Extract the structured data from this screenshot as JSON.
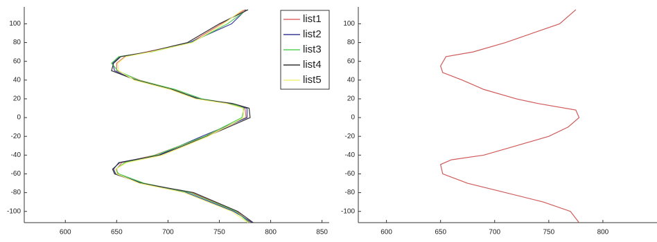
{
  "charts": [
    {
      "type": "line",
      "xlim": [
        560,
        857
      ],
      "ylim": [
        -112,
        118
      ],
      "xticks": [
        600,
        650,
        700,
        750,
        800,
        850
      ],
      "yticks": [
        -100,
        -80,
        -60,
        -40,
        -20,
        0,
        20,
        40,
        60,
        80,
        100
      ],
      "legend": "top-right",
      "series": [
        {
          "name": "list1",
          "color": "#e06a6a",
          "y": [
            -112,
            -100,
            -80,
            -70,
            -60,
            -55,
            -48,
            -40,
            -20,
            0,
            10,
            15,
            20,
            30,
            40,
            50,
            58,
            65,
            70,
            80,
            100,
            115
          ],
          "x": [
            780,
            767,
            723,
            673,
            651,
            650,
            655,
            687,
            737,
            776,
            775,
            762,
            728,
            706,
            672,
            650,
            650,
            658,
            679,
            722,
            752,
            775
          ]
        },
        {
          "name": "list2",
          "color": "#3a3a9a",
          "y": [
            -112,
            -100,
            -80,
            -70,
            -60,
            -55,
            -48,
            -40,
            -20,
            0,
            10,
            15,
            20,
            30,
            40,
            50,
            58,
            65,
            70,
            80,
            100,
            115
          ],
          "x": [
            782,
            764,
            718,
            676,
            649,
            647,
            652,
            691,
            733,
            777,
            777,
            758,
            731,
            703,
            668,
            648,
            646,
            653,
            682,
            721,
            762,
            776
          ]
        },
        {
          "name": "list3",
          "color": "#55d055",
          "y": [
            -112,
            -100,
            -80,
            -70,
            -60,
            -55,
            -48,
            -40,
            -20,
            0,
            10,
            15,
            20,
            30,
            40,
            50,
            58,
            65,
            70,
            80,
            100,
            115
          ],
          "x": [
            779,
            766,
            721,
            677,
            652,
            649,
            658,
            688,
            736,
            772,
            774,
            761,
            733,
            707,
            671,
            651,
            645,
            652,
            684,
            723,
            758,
            777
          ]
        },
        {
          "name": "list4",
          "color": "#333333",
          "y": [
            -112,
            -100,
            -80,
            -70,
            -60,
            -55,
            -48,
            -40,
            -20,
            0,
            10,
            15,
            20,
            30,
            40,
            50,
            58,
            65,
            70,
            80,
            100,
            115
          ],
          "x": [
            783,
            768,
            725,
            674,
            648,
            646,
            653,
            692,
            738,
            780,
            779,
            763,
            729,
            704,
            669,
            645,
            647,
            654,
            681,
            719,
            750,
            778
          ]
        },
        {
          "name": "list5",
          "color": "#f2f27a",
          "y": [
            -112,
            -100,
            -80,
            -70,
            -60,
            -55,
            -48,
            -40,
            -20,
            0,
            10,
            15,
            20,
            30,
            40,
            50,
            58,
            65,
            70,
            80,
            100,
            115
          ],
          "x": [
            778,
            762,
            716,
            672,
            650,
            649,
            660,
            695,
            739,
            774,
            773,
            757,
            727,
            702,
            667,
            652,
            651,
            659,
            683,
            724,
            754,
            773
          ]
        }
      ]
    },
    {
      "type": "line",
      "xlim": [
        574,
        850
      ],
      "ylim": [
        -112,
        118
      ],
      "xticks": [
        600,
        650,
        700,
        750,
        800
      ],
      "yticks": [
        -100,
        -80,
        -60,
        -40,
        -20,
        0,
        20,
        40,
        60,
        80,
        100
      ],
      "series": [
        {
          "color": "#d05a5a",
          "y": [
            -112,
            -100,
            -90,
            -80,
            -70,
            -60,
            -50,
            -45,
            -40,
            -30,
            -20,
            -10,
            0,
            8,
            15,
            20,
            30,
            40,
            48,
            55,
            65,
            70,
            80,
            90,
            100,
            115
          ],
          "x": [
            778,
            770,
            745,
            710,
            675,
            652,
            650,
            660,
            690,
            720,
            750,
            768,
            778,
            775,
            740,
            720,
            690,
            670,
            652,
            650,
            655,
            680,
            710,
            735,
            760,
            775
          ]
        }
      ]
    }
  ]
}
